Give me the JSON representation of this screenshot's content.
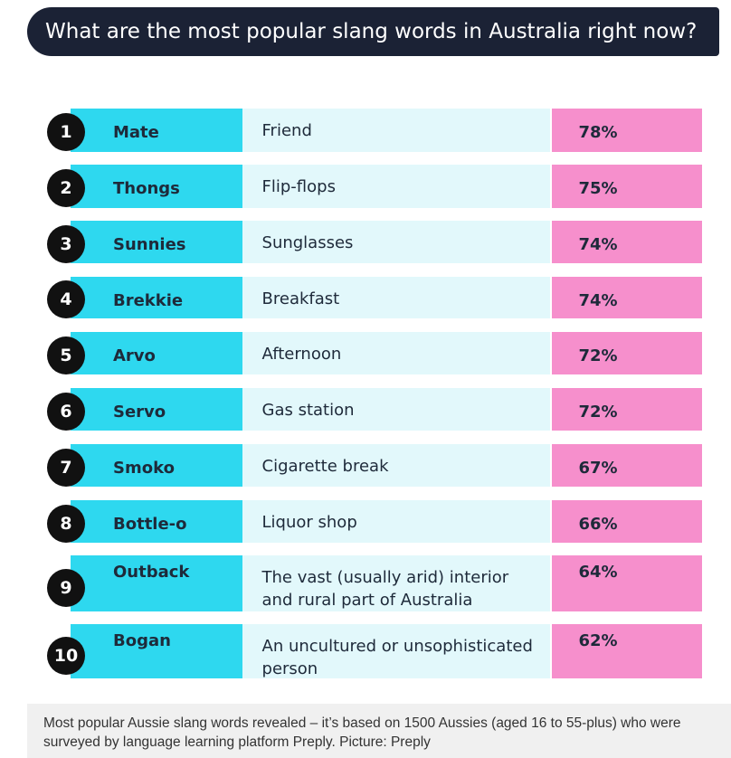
{
  "header": {
    "title": "What are the most popular slang words in Australia right now?"
  },
  "table": {
    "rows": [
      [
        1,
        "Mate",
        "Friend",
        "78%"
      ],
      [
        2,
        "Thongs",
        "Flip-flops",
        "75%"
      ],
      [
        3,
        "Sunnies",
        "Sunglasses",
        "74%"
      ],
      [
        4,
        "Brekkie",
        "Breakfast",
        "74%"
      ],
      [
        5,
        "Arvo",
        "Afternoon",
        "72%"
      ],
      [
        6,
        "Servo",
        "Gas station",
        "72%"
      ],
      [
        7,
        "Smoko",
        "Cigarette break",
        "67%"
      ],
      [
        8,
        "Bottle-o",
        "Liquor shop",
        "66%"
      ],
      [
        9,
        "Outback",
        "The vast (usually arid) interior and rural part of Australia",
        "64%"
      ],
      [
        10,
        "Bogan",
        "An uncultured or unsophisticated person",
        "62%"
      ]
    ]
  },
  "caption": "Most popular Aussie slang words revealed – it’s based on 1500 Aussies (aged 16 to 55-plus) who were surveyed by language learning platform Preply. Picture: Preply"
}
